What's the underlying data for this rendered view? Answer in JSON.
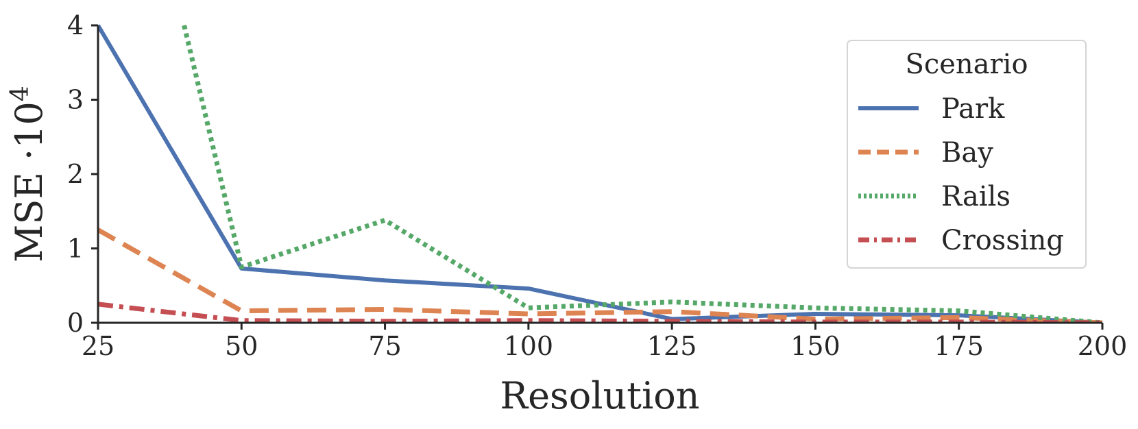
{
  "chart_data": {
    "type": "line",
    "x": [
      25,
      50,
      75,
      100,
      125,
      150,
      175,
      200
    ],
    "xlabel": "Resolution",
    "ylabel": "MSE ·10",
    "ylabel_superscript": "4",
    "xlim": [
      25,
      200
    ],
    "ylim": [
      0,
      4
    ],
    "xticks": [
      "25",
      "50",
      "75",
      "100",
      "125",
      "150",
      "175",
      "200"
    ],
    "yticks": [
      "0",
      "1",
      "2",
      "3",
      "4"
    ],
    "grid": false,
    "legend": {
      "title": "Scenario",
      "position": "top-right"
    },
    "series": [
      {
        "name": "Park",
        "style": "solid",
        "color": "#4c72b0",
        "points": [
          [
            25,
            4.0
          ],
          [
            50,
            0.73
          ],
          [
            75,
            0.57
          ],
          [
            100,
            0.46
          ],
          [
            125,
            0.05
          ],
          [
            150,
            0.12
          ],
          [
            175,
            0.1
          ],
          [
            200,
            0.0
          ]
        ]
      },
      {
        "name": "Bay",
        "style": "dashed",
        "color": "#dd8452",
        "points": [
          [
            25,
            1.25
          ],
          [
            50,
            0.16
          ],
          [
            75,
            0.18
          ],
          [
            100,
            0.12
          ],
          [
            125,
            0.15
          ],
          [
            150,
            0.05
          ],
          [
            175,
            0.07
          ],
          [
            200,
            0.0
          ]
        ]
      },
      {
        "name": "Rails",
        "style": "dotted",
        "color": "#55a868",
        "points": [
          [
            40,
            4.0
          ],
          [
            50,
            0.75
          ],
          [
            75,
            1.38
          ],
          [
            100,
            0.2
          ],
          [
            125,
            0.28
          ],
          [
            150,
            0.2
          ],
          [
            175,
            0.16
          ],
          [
            200,
            0.0
          ]
        ]
      },
      {
        "name": "Crossing",
        "style": "dashdot",
        "color": "#c44e52",
        "points": [
          [
            25,
            0.25
          ],
          [
            50,
            0.03
          ],
          [
            75,
            0.02
          ],
          [
            100,
            0.03
          ],
          [
            125,
            0.02
          ],
          [
            150,
            0.01
          ],
          [
            175,
            0.01
          ],
          [
            200,
            0.0
          ]
        ]
      }
    ]
  }
}
